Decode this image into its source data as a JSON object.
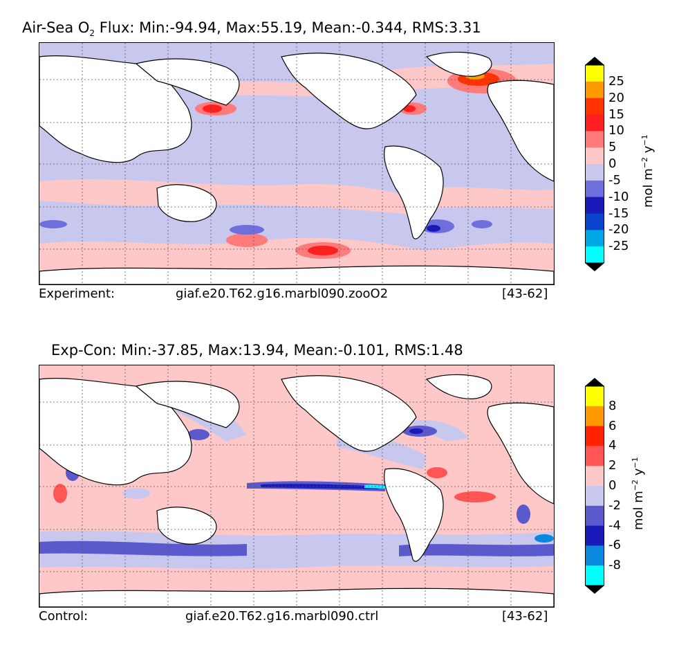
{
  "panels": [
    {
      "title_prefix": "Air-Sea O",
      "title_sub": "2",
      "title_rest": " Flux: Min:-94.94, Max:55.19, Mean:-0.344, RMS:3.31",
      "footer": {
        "left": "Experiment:",
        "center": "giaf.e20.T62.g16.marbl090.zooO2",
        "right": "[43-62]"
      },
      "colorbar": {
        "ticks": [
          "25",
          "20",
          "15",
          "10",
          "5",
          "0",
          "-5",
          "-10",
          "-15",
          "-20",
          "-25"
        ],
        "colors": [
          "#ffff00",
          "#ff9900",
          "#ff3300",
          "#ff1f1f",
          "#ff7a7a",
          "#ffc8c8",
          "#c8c8ee",
          "#6e6edc",
          "#1a1ab8",
          "#0a44cc",
          "#00a6e6",
          "#00ffff"
        ],
        "unit_base": "mol m",
        "unit_exp1": "−2",
        "unit_mid": " y",
        "unit_exp2": "−1"
      }
    },
    {
      "title_prefix": "Exp-Con: Min:-37.85, Max:13.94, Mean:-0.101, RMS:1.48",
      "title_sub": "",
      "title_rest": "",
      "footer": {
        "left": "Control:",
        "center": "giaf.e20.T62.g16.marbl090.ctrl",
        "right": "[43-62]"
      },
      "colorbar": {
        "ticks": [
          "8",
          "6",
          "4",
          "2",
          "0",
          "-2",
          "-4",
          "-6",
          "-8"
        ],
        "colors": [
          "#ffff00",
          "#ff9900",
          "#ff2200",
          "#ff5555",
          "#ffc8c8",
          "#c8c8ee",
          "#5a5acc",
          "#1a1ab8",
          "#0a88dd",
          "#00ffff"
        ],
        "unit_base": "mol m",
        "unit_exp1": "−2",
        "unit_mid": " y",
        "unit_exp2": "−1"
      }
    }
  ]
}
